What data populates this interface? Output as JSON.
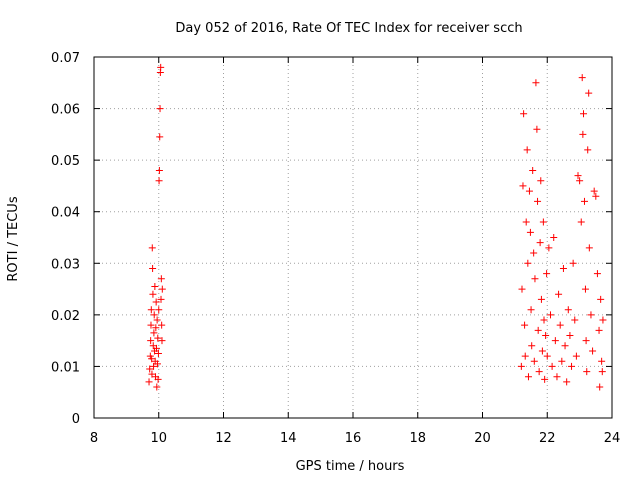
{
  "chart_data": {
    "type": "scatter",
    "title": "Day 052 of 2016, Rate Of TEC Index for receiver scch",
    "xlabel": "GPS time / hours",
    "ylabel": "ROTI / TECUs",
    "xlim": [
      8,
      24
    ],
    "ylim": [
      0,
      0.07
    ],
    "x_ticks": [
      8,
      10,
      12,
      14,
      16,
      18,
      20,
      22,
      24
    ],
    "y_ticks": [
      0,
      0.01,
      0.02,
      0.03,
      0.04,
      0.05,
      0.06,
      0.07
    ],
    "x_tick_labels": [
      "8",
      "10",
      "12",
      "14",
      "16",
      "18",
      "20",
      "22",
      "24"
    ],
    "y_tick_labels": [
      "0",
      "0.01",
      "0.02",
      "0.03",
      "0.04",
      "0.05",
      "0.06",
      "0.07"
    ],
    "grid": true,
    "marker": "+",
    "color": "#ff0000",
    "series": [
      {
        "name": "ROTI",
        "points": [
          [
            9.7,
            0.007
          ],
          [
            9.72,
            0.0095
          ],
          [
            9.74,
            0.012
          ],
          [
            9.75,
            0.015
          ],
          [
            9.76,
            0.018
          ],
          [
            9.77,
            0.021
          ],
          [
            9.78,
            0.0115
          ],
          [
            9.79,
            0.0085
          ],
          [
            9.8,
            0.033
          ],
          [
            9.81,
            0.029
          ],
          [
            9.82,
            0.024
          ],
          [
            9.83,
            0.014
          ],
          [
            9.84,
            0.01
          ],
          [
            9.85,
            0.0165
          ],
          [
            9.86,
            0.02
          ],
          [
            9.87,
            0.013
          ],
          [
            9.88,
            0.0255
          ],
          [
            9.89,
            0.011
          ],
          [
            9.9,
            0.008
          ],
          [
            9.91,
            0.0175
          ],
          [
            9.92,
            0.0225
          ],
          [
            9.93,
            0.0135
          ],
          [
            9.94,
            0.006
          ],
          [
            9.95,
            0.019
          ],
          [
            9.96,
            0.0105
          ],
          [
            9.97,
            0.0155
          ],
          [
            9.98,
            0.0075
          ],
          [
            9.99,
            0.0125
          ],
          [
            10.0,
            0.021
          ],
          [
            10.01,
            0.046
          ],
          [
            10.02,
            0.048
          ],
          [
            10.03,
            0.0545
          ],
          [
            10.04,
            0.06
          ],
          [
            10.05,
            0.067
          ],
          [
            10.06,
            0.068
          ],
          [
            10.07,
            0.023
          ],
          [
            10.08,
            0.027
          ],
          [
            10.09,
            0.018
          ],
          [
            10.1,
            0.015
          ],
          [
            10.11,
            0.025
          ],
          [
            21.2,
            0.01
          ],
          [
            21.22,
            0.025
          ],
          [
            21.25,
            0.045
          ],
          [
            21.27,
            0.059
          ],
          [
            21.3,
            0.018
          ],
          [
            21.32,
            0.012
          ],
          [
            21.35,
            0.038
          ],
          [
            21.38,
            0.052
          ],
          [
            21.4,
            0.03
          ],
          [
            21.42,
            0.008
          ],
          [
            21.45,
            0.044
          ],
          [
            21.48,
            0.036
          ],
          [
            21.5,
            0.021
          ],
          [
            21.52,
            0.014
          ],
          [
            21.55,
            0.048
          ],
          [
            21.58,
            0.032
          ],
          [
            21.6,
            0.011
          ],
          [
            21.62,
            0.027
          ],
          [
            21.65,
            0.065
          ],
          [
            21.68,
            0.056
          ],
          [
            21.7,
            0.042
          ],
          [
            21.72,
            0.017
          ],
          [
            21.75,
            0.009
          ],
          [
            21.78,
            0.034
          ],
          [
            21.8,
            0.046
          ],
          [
            21.82,
            0.023
          ],
          [
            21.85,
            0.013
          ],
          [
            21.88,
            0.038
          ],
          [
            21.9,
            0.019
          ],
          [
            21.92,
            0.0075
          ],
          [
            21.95,
            0.016
          ],
          [
            21.98,
            0.028
          ],
          [
            22.0,
            0.012
          ],
          [
            22.05,
            0.033
          ],
          [
            22.1,
            0.02
          ],
          [
            22.15,
            0.01
          ],
          [
            22.2,
            0.035
          ],
          [
            22.25,
            0.015
          ],
          [
            22.3,
            0.008
          ],
          [
            22.35,
            0.024
          ],
          [
            22.4,
            0.018
          ],
          [
            22.45,
            0.011
          ],
          [
            22.5,
            0.029
          ],
          [
            22.55,
            0.014
          ],
          [
            22.6,
            0.007
          ],
          [
            22.65,
            0.021
          ],
          [
            22.7,
            0.016
          ],
          [
            22.75,
            0.01
          ],
          [
            22.8,
            0.03
          ],
          [
            22.85,
            0.019
          ],
          [
            22.9,
            0.012
          ],
          [
            22.95,
            0.047
          ],
          [
            23.0,
            0.046
          ],
          [
            23.05,
            0.038
          ],
          [
            23.08,
            0.066
          ],
          [
            23.1,
            0.055
          ],
          [
            23.12,
            0.059
          ],
          [
            23.15,
            0.042
          ],
          [
            23.18,
            0.025
          ],
          [
            23.2,
            0.015
          ],
          [
            23.22,
            0.009
          ],
          [
            23.25,
            0.052
          ],
          [
            23.28,
            0.063
          ],
          [
            23.3,
            0.033
          ],
          [
            23.35,
            0.02
          ],
          [
            23.4,
            0.013
          ],
          [
            23.45,
            0.044
          ],
          [
            23.5,
            0.043
          ],
          [
            23.55,
            0.028
          ],
          [
            23.6,
            0.017
          ],
          [
            23.62,
            0.006
          ],
          [
            23.65,
            0.023
          ],
          [
            23.68,
            0.011
          ],
          [
            23.7,
            0.009
          ],
          [
            23.72,
            0.019
          ]
        ]
      }
    ]
  }
}
